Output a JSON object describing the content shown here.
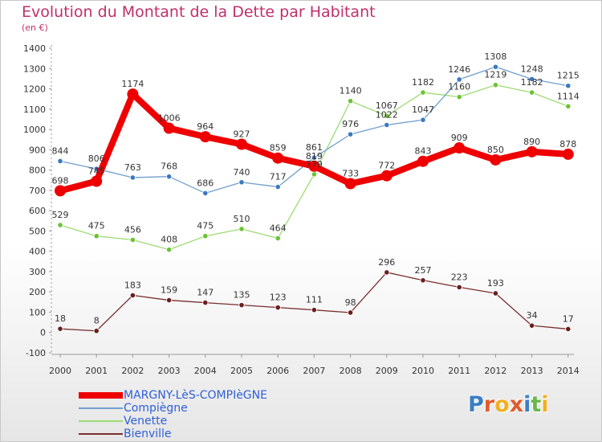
{
  "title": "Evolution du Montant de la Dette par Habitant",
  "subtitle": "(en €)",
  "logo": {
    "text": "Proxiti",
    "letters": [
      {
        "ch": "P",
        "color": "#3a7fc4"
      },
      {
        "ch": "r",
        "color": "#e25b2d"
      },
      {
        "ch": "o",
        "color": "#f0b020"
      },
      {
        "ch": "x",
        "color": "#e25b2d"
      },
      {
        "ch": "i",
        "color": "#3a7fc4"
      },
      {
        "ch": "t",
        "color": "#6ab64a"
      },
      {
        "ch": "i",
        "color": "#f0b020"
      }
    ]
  },
  "chart_data": {
    "type": "line",
    "categories": [
      "2000",
      "2001",
      "2002",
      "2003",
      "2004",
      "2005",
      "2006",
      "2007",
      "2008",
      "2009",
      "2010",
      "2011",
      "2012",
      "2013",
      "2014"
    ],
    "ylim": [
      -100,
      1400
    ],
    "yticks": [
      -100,
      0,
      100,
      200,
      300,
      400,
      500,
      600,
      700,
      800,
      900,
      1000,
      1100,
      1200,
      1300,
      1400
    ],
    "grid": false,
    "legend_position": "bottom-left",
    "series": [
      {
        "name": "MARGNY-LèS-COMPIèGNE",
        "color": "#ee0000",
        "width": 8,
        "marker": 7,
        "values": [
          698,
          745,
          1174,
          1006,
          964,
          927,
          859,
          819,
          733,
          772,
          843,
          909,
          850,
          890,
          878
        ],
        "labels": [
          "698",
          "745",
          "1174",
          "1006",
          "964",
          "927",
          "859",
          "819",
          "733",
          "772",
          "843",
          "909",
          "850",
          "890",
          "878"
        ],
        "label_color": "#333333"
      },
      {
        "name": "Compiègne",
        "color": "#6f9fce",
        "width": 1.3,
        "marker": 3.2,
        "marker_color": "#3c78c0",
        "values": [
          844,
          806,
          763,
          768,
          686,
          740,
          717,
          861,
          976,
          1022,
          1047,
          1246,
          1308,
          1248,
          1215
        ],
        "labels": [
          "844",
          "806",
          "763",
          "768",
          "686",
          "740",
          "717",
          "861",
          "976",
          "1022",
          "1047",
          "1246",
          "1308",
          "1248",
          "1215"
        ],
        "label_color": "#333333"
      },
      {
        "name": "Venette",
        "color": "#9ddc74",
        "width": 1.3,
        "marker": 3.2,
        "marker_color": "#6cc234",
        "values": [
          529,
          475,
          456,
          408,
          475,
          510,
          464,
          779,
          1140,
          1067,
          1182,
          1160,
          1219,
          1182,
          1114
        ],
        "labels": [
          "529",
          "475",
          "456",
          "408",
          "475",
          "510",
          "464",
          "779",
          "1140",
          "1067",
          "1182",
          "1160",
          "1219",
          "1182",
          "1114"
        ],
        "label_color": "#333333"
      },
      {
        "name": "Bienville",
        "color": "#7b2e2e",
        "width": 1.3,
        "marker": 3.2,
        "marker_color": "#6a1e1e",
        "values": [
          18,
          8,
          183,
          159,
          147,
          135,
          123,
          111,
          98,
          296,
          257,
          223,
          193,
          34,
          17
        ],
        "labels": [
          "18",
          "8",
          "183",
          "159",
          "147",
          "135",
          "123",
          "111",
          "98",
          "296",
          "257",
          "223",
          "193",
          "34",
          "17"
        ],
        "label_color": "#333333"
      }
    ]
  }
}
